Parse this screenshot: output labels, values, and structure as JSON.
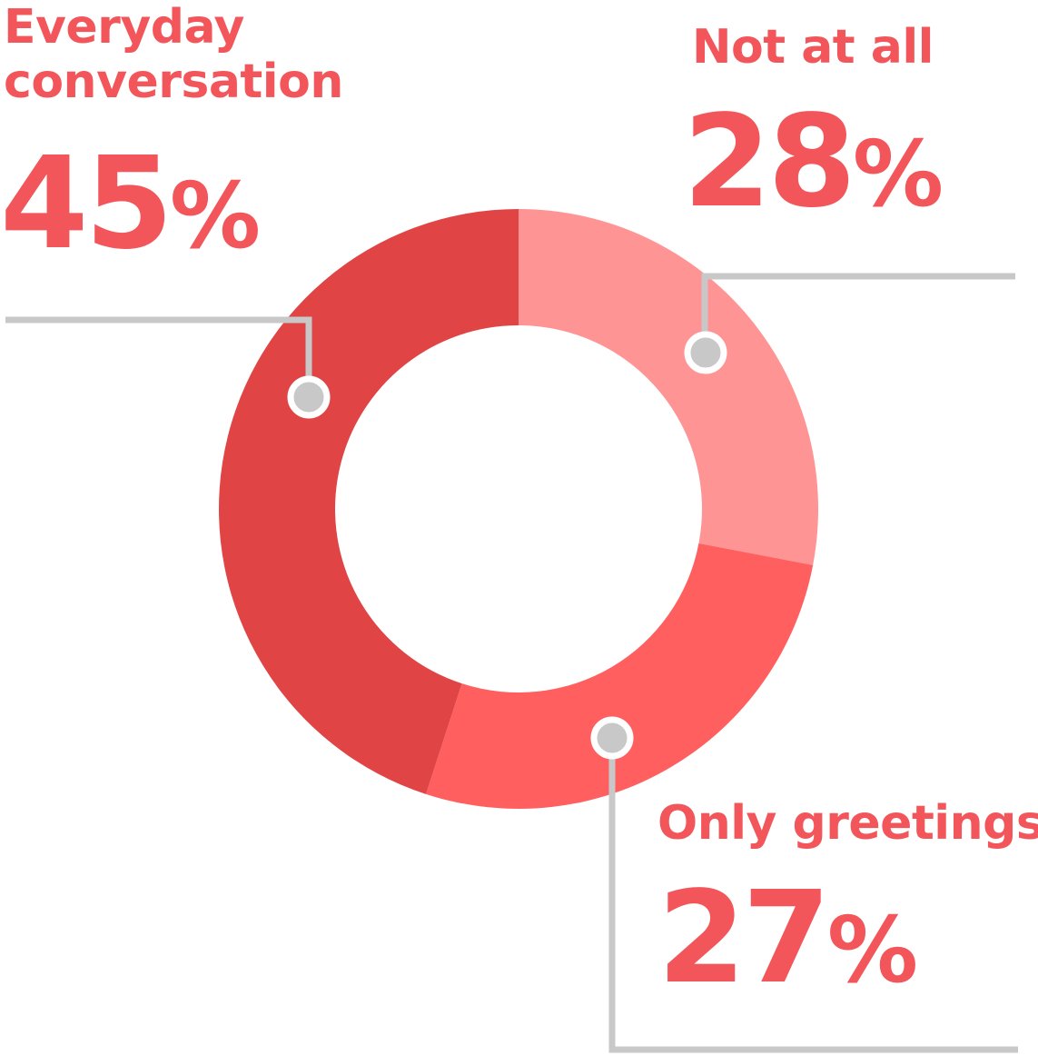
{
  "chart_data": {
    "type": "pie",
    "donut": true,
    "categories": [
      "Not at all",
      "Only greetings",
      "Everyday conversation"
    ],
    "values": [
      28,
      27,
      45
    ],
    "value_labels": [
      "28",
      "27",
      "45"
    ],
    "unit": "%",
    "colors": [
      "#ff9494",
      "#ff5f5f",
      "#e04444"
    ],
    "leader_line_color": "#c8c8c8",
    "marker_fill": "#c8c8c8",
    "label_color": "#f2555a",
    "legend": "none",
    "title": ""
  }
}
